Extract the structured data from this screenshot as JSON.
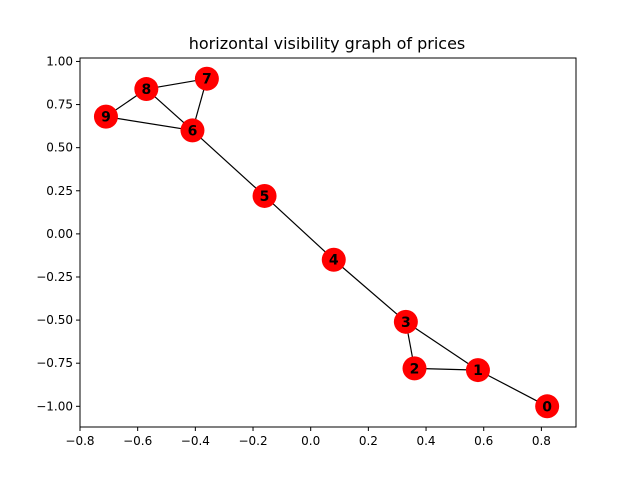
{
  "title": "horizontal visibility graph of prices",
  "chart_data": {
    "type": "graph",
    "title": "horizontal visibility graph of prices",
    "xlim": [
      -0.8,
      0.92
    ],
    "ylim": [
      -1.12,
      1.02
    ],
    "x_ticks": [
      -0.8,
      -0.6,
      -0.4,
      -0.2,
      0.0,
      0.2,
      0.4,
      0.6,
      0.8
    ],
    "x_tick_labels": [
      "−0.8",
      "−0.6",
      "−0.4",
      "−0.2",
      "0.0",
      "0.2",
      "0.4",
      "0.6",
      "0.8"
    ],
    "y_ticks": [
      1.0,
      0.75,
      0.5,
      0.25,
      0.0,
      -0.25,
      -0.5,
      -0.75,
      -1.0
    ],
    "y_tick_labels": [
      "1.00",
      "0.75",
      "0.50",
      "0.25",
      "0.00",
      "−0.25",
      "−0.50",
      "−0.75",
      "−1.00"
    ],
    "node_color": "#ff0000",
    "edge_color": "#000000",
    "nodes": [
      {
        "id": "0",
        "x": 0.82,
        "y": -1.0
      },
      {
        "id": "1",
        "x": 0.58,
        "y": -0.79
      },
      {
        "id": "2",
        "x": 0.36,
        "y": -0.78
      },
      {
        "id": "3",
        "x": 0.33,
        "y": -0.51
      },
      {
        "id": "4",
        "x": 0.08,
        "y": -0.15
      },
      {
        "id": "5",
        "x": -0.16,
        "y": 0.22
      },
      {
        "id": "6",
        "x": -0.41,
        "y": 0.6
      },
      {
        "id": "7",
        "x": -0.36,
        "y": 0.9
      },
      {
        "id": "8",
        "x": -0.57,
        "y": 0.84
      },
      {
        "id": "9",
        "x": -0.71,
        "y": 0.68
      }
    ],
    "edges": [
      [
        "0",
        "1"
      ],
      [
        "1",
        "2"
      ],
      [
        "1",
        "3"
      ],
      [
        "2",
        "3"
      ],
      [
        "3",
        "4"
      ],
      [
        "4",
        "5"
      ],
      [
        "5",
        "6"
      ],
      [
        "6",
        "7"
      ],
      [
        "6",
        "8"
      ],
      [
        "6",
        "9"
      ],
      [
        "7",
        "8"
      ],
      [
        "8",
        "9"
      ]
    ]
  }
}
